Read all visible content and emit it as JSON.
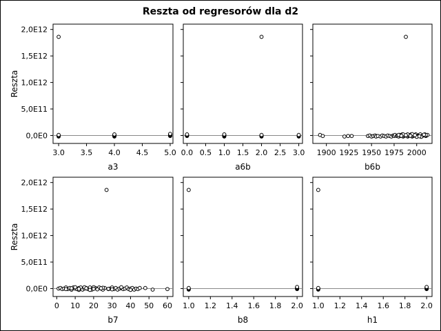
{
  "title": "Reszta od regresorów dla d2",
  "ylabel": "Reszta",
  "chart_data": [
    {
      "type": "scatter",
      "xlabel": "a3",
      "ylabel": "Reszta",
      "xlim": [
        2.9,
        5.05
      ],
      "ylim": [
        -150000000000.0,
        2100000000000.0
      ],
      "xticks": [
        3.0,
        3.5,
        4.0,
        4.5,
        5.0
      ],
      "xtick_labels": [
        "3.0",
        "3.5",
        "4.0",
        "4.5",
        "5.0"
      ],
      "yticks": [
        0,
        500000000000.0,
        1000000000000.0,
        1500000000000.0,
        2000000000000.0
      ],
      "ytick_labels": [
        "0,0E0",
        "5,0E11",
        "1,0E12",
        "1,5E12",
        "2,0E12"
      ],
      "x": [
        3,
        3,
        3,
        3,
        3,
        4,
        4,
        4,
        4,
        4,
        5,
        5,
        5,
        5,
        5
      ],
      "y": [
        1860000000000.0,
        -20000000000.0,
        -10000000000.0,
        0,
        10000000000.0,
        -20000000000.0,
        -10000000000.0,
        0,
        10000000000.0,
        20000000000.0,
        -10000000000.0,
        0,
        10000000000.0,
        20000000000.0,
        30000000000.0
      ]
    },
    {
      "type": "scatter",
      "xlabel": "a6b",
      "ylabel": "",
      "xlim": [
        -0.1,
        3.1
      ],
      "ylim": [
        -150000000000.0,
        2100000000000.0
      ],
      "xticks": [
        0,
        0.5,
        1,
        1.5,
        2,
        2.5,
        3
      ],
      "xtick_labels": [
        "0.0",
        "0.5",
        "1.0",
        "1.5",
        "2.0",
        "2.5",
        "3.0"
      ],
      "yticks": [
        0,
        500000000000.0,
        1000000000000.0,
        1500000000000.0,
        2000000000000.0
      ],
      "ytick_labels": [],
      "x": [
        0,
        0,
        0,
        0,
        1,
        1,
        1,
        1,
        1,
        2,
        2,
        2,
        2,
        2,
        3,
        3,
        3,
        3
      ],
      "y": [
        -10000000000.0,
        0,
        10000000000.0,
        20000000000.0,
        -20000000000.0,
        -10000000000.0,
        0,
        10000000000.0,
        20000000000.0,
        1860000000000.0,
        -20000000000.0,
        -10000000000.0,
        0,
        10000000000.0,
        -20000000000.0,
        -10000000000.0,
        0,
        10000000000.0
      ]
    },
    {
      "type": "scatter",
      "xlabel": "b6b",
      "ylabel": "",
      "xlim": [
        1885,
        2017
      ],
      "ylim": [
        -150000000000.0,
        2100000000000.0
      ],
      "xticks": [
        1900,
        1925,
        1950,
        1975,
        2000
      ],
      "xtick_labels": [
        "1900",
        "1925",
        "1950",
        "1975",
        "2000"
      ],
      "yticks": [
        0,
        500000000000.0,
        1000000000000.0,
        1500000000000.0,
        2000000000000.0
      ],
      "ytick_labels": [],
      "x": [
        1988,
        1893,
        1896,
        1920,
        1924,
        1928,
        1946,
        1948,
        1950,
        1952,
        1954,
        1955,
        1957,
        1960,
        1962,
        1964,
        1966,
        1968,
        1970,
        1972,
        1974,
        1975,
        1976,
        1978,
        1979,
        1980,
        1981,
        1982,
        1983,
        1984,
        1985,
        1986,
        1987,
        1989,
        1990,
        1991,
        1992,
        1993,
        1994,
        1995,
        1996,
        1997,
        1998,
        1999,
        2000,
        2001,
        2002,
        2003,
        2004,
        2005,
        2006,
        2007,
        2008,
        2009,
        2010,
        2011,
        2012,
        1980,
        1985,
        1990,
        1995,
        2000,
        2005,
        2010,
        1983,
        1988,
        1993,
        1998,
        2003,
        2008
      ],
      "y": [
        1860000000000.0,
        10000000000.0,
        -10000000000.0,
        -20000000000.0,
        -10000000000.0,
        -10000000000.0,
        -10000000000.0,
        0,
        -20000000000.0,
        -10000000000.0,
        0,
        -20000000000.0,
        -10000000000.0,
        -20000000000.0,
        0,
        -10000000000.0,
        -20000000000.0,
        0,
        -10000000000.0,
        -20000000000.0,
        0,
        -10000000000.0,
        10000000000.0,
        -10000000000.0,
        0,
        -20000000000.0,
        10000000000.0,
        -10000000000.0,
        0,
        20000000000.0,
        -20000000000.0,
        -10000000000.0,
        0,
        10000000000.0,
        -20000000000.0,
        -10000000000.0,
        0,
        10000000000.0,
        20000000000.0,
        -20000000000.0,
        -10000000000.0,
        0,
        10000000000.0,
        20000000000.0,
        -20000000000.0,
        -10000000000.0,
        0,
        10000000000.0,
        20000000000.0,
        -20000000000.0,
        -10000000000.0,
        0,
        10000000000.0,
        20000000000.0,
        -10000000000.0,
        0,
        10000000000.0,
        10000000000.0,
        20000000000.0,
        20000000000.0,
        25000000000.0,
        -25000000000.0,
        -25000000000.0,
        10000000000.0,
        -5000000000.0,
        5000000000.0,
        -5000000000.0,
        5000000000.0,
        -15000000000.0,
        15000000000.0
      ]
    },
    {
      "type": "scatter",
      "xlabel": "b7",
      "ylabel": "Reszta",
      "xlim": [
        -2,
        63
      ],
      "ylim": [
        -150000000000.0,
        2100000000000.0
      ],
      "xticks": [
        0,
        10,
        20,
        30,
        40,
        50,
        60
      ],
      "xtick_labels": [
        "0",
        "10",
        "20",
        "30",
        "40",
        "50",
        "60"
      ],
      "yticks": [
        0,
        500000000000.0,
        1000000000000.0,
        1500000000000.0,
        2000000000000.0
      ],
      "ytick_labels": [
        "0,0E0",
        "5,0E11",
        "1,0E12",
        "1,5E12",
        "2,0E12"
      ],
      "x": [
        27,
        1,
        2,
        3,
        4,
        5,
        6,
        7,
        8,
        9,
        10,
        11,
        12,
        13,
        14,
        15,
        16,
        17,
        18,
        19,
        20,
        21,
        22,
        23,
        24,
        25,
        26,
        28,
        29,
        30,
        31,
        32,
        33,
        34,
        35,
        36,
        37,
        38,
        39,
        40,
        41,
        42,
        43,
        44,
        45,
        48,
        52,
        60,
        5,
        8,
        10,
        12,
        15,
        18,
        20,
        22,
        25,
        30,
        35,
        40,
        8,
        12,
        16,
        20,
        24,
        28
      ],
      "y": [
        1860000000000.0,
        0,
        10000000000.0,
        -10000000000.0,
        0,
        20000000000.0,
        -10000000000.0,
        10000000000.0,
        -20000000000.0,
        20000000000.0,
        0,
        -10000000000.0,
        10000000000.0,
        20000000000.0,
        -20000000000.0,
        0,
        10000000000.0,
        -10000000000.0,
        20000000000.0,
        -20000000000.0,
        0,
        10000000000.0,
        -10000000000.0,
        20000000000.0,
        0,
        -20000000000.0,
        10000000000.0,
        -10000000000.0,
        0,
        20000000000.0,
        -10000000000.0,
        10000000000.0,
        -20000000000.0,
        0,
        10000000000.0,
        -10000000000.0,
        0,
        20000000000.0,
        -10000000000.0,
        0,
        10000000000.0,
        -20000000000.0,
        0,
        -10000000000.0,
        10000000000.0,
        10000000000.0,
        -20000000000.0,
        -10000000000.0,
        -10000000000.0,
        -20000000000.0,
        25000000000.0,
        -25000000000.0,
        25000000000.0,
        -25000000000.0,
        25000000000.0,
        -15000000000.0,
        15000000000.0,
        -15000000000.0,
        25000000000.0,
        -25000000000.0,
        5000000000.0,
        -5000000000.0,
        5000000000.0,
        -5000000000.0,
        5000000000.0,
        -5000000000.0
      ]
    },
    {
      "type": "scatter",
      "xlabel": "b8",
      "ylabel": "",
      "xlim": [
        0.95,
        2.05
      ],
      "ylim": [
        -150000000000.0,
        2100000000000.0
      ],
      "xticks": [
        1.0,
        1.2,
        1.4,
        1.6,
        1.8,
        2.0
      ],
      "xtick_labels": [
        "1.0",
        "1.2",
        "1.4",
        "1.6",
        "1.8",
        "2.0"
      ],
      "yticks": [
        0,
        500000000000.0,
        1000000000000.0,
        1500000000000.0,
        2000000000000.0
      ],
      "ytick_labels": [],
      "x": [
        1,
        1,
        1,
        1,
        1,
        2,
        2,
        2,
        2,
        2
      ],
      "y": [
        1860000000000.0,
        -20000000000.0,
        -10000000000.0,
        0,
        10000000000.0,
        -10000000000.0,
        0,
        10000000000.0,
        20000000000.0,
        30000000000.0
      ]
    },
    {
      "type": "scatter",
      "xlabel": "h1",
      "ylabel": "",
      "xlim": [
        0.95,
        2.05
      ],
      "ylim": [
        -150000000000.0,
        2100000000000.0
      ],
      "xticks": [
        1.0,
        1.2,
        1.4,
        1.6,
        1.8,
        2.0
      ],
      "xtick_labels": [
        "1.0",
        "1.2",
        "1.4",
        "1.6",
        "1.8",
        "2.0"
      ],
      "yticks": [
        0,
        500000000000.0,
        1000000000000.0,
        1500000000000.0,
        2000000000000.0
      ],
      "ytick_labels": [],
      "x": [
        1,
        1,
        1,
        1,
        1,
        2,
        2,
        2,
        2,
        2
      ],
      "y": [
        1860000000000.0,
        -20000000000.0,
        -10000000000.0,
        0,
        10000000000.0,
        -10000000000.0,
        0,
        10000000000.0,
        20000000000.0,
        30000000000.0
      ]
    }
  ]
}
